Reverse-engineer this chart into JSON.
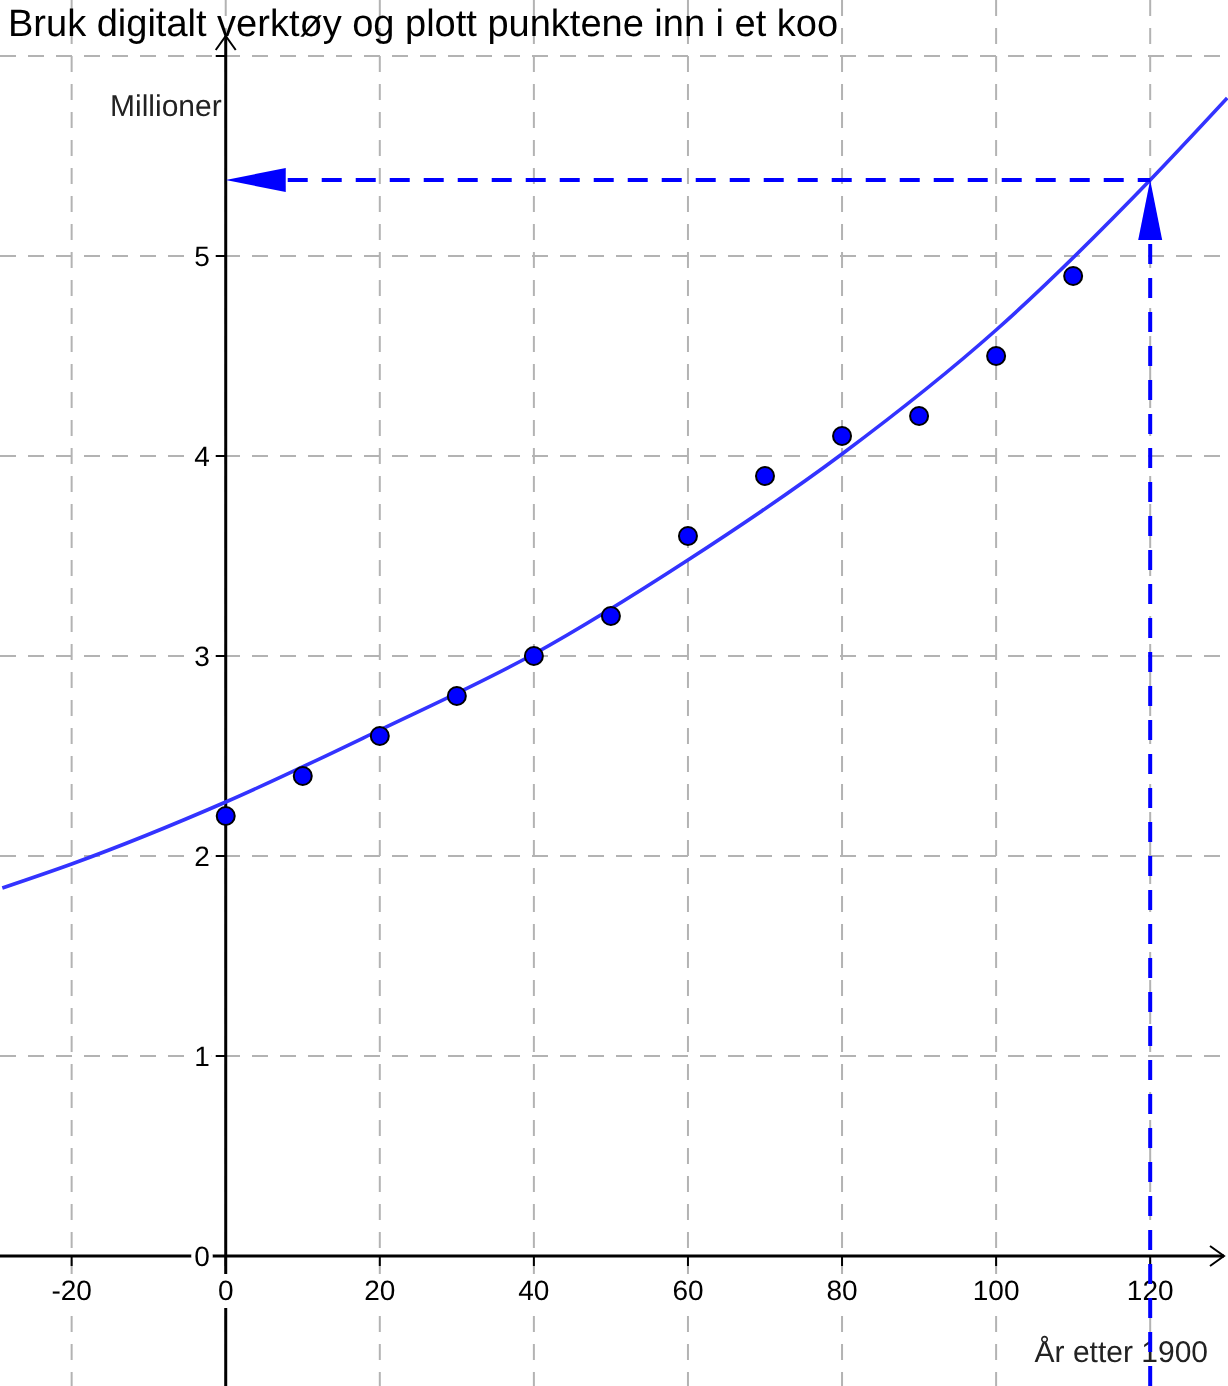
{
  "chart_data": {
    "type": "scatter",
    "title": "Bruk digitalt verktøy og plott punktene inn i et koo",
    "xlabel": "År etter 1900",
    "ylabel": "Millioner",
    "xlim": [
      -29.3,
      130.1
    ],
    "ylim": [
      -0.65,
      6.28
    ],
    "xticks": [
      -20,
      0,
      20,
      40,
      60,
      80,
      100,
      120
    ],
    "yticks": [
      0,
      1,
      2,
      3,
      4,
      5,
      {
        "value": 6,
        "label": null
      }
    ],
    "grid": true,
    "series": [
      {
        "marker": "circle",
        "color": "#0000ff",
        "x": [
          0,
          10,
          20,
          30,
          40,
          50,
          60,
          70,
          80,
          90,
          100,
          110
        ],
        "values": [
          2.2,
          2.4,
          2.6,
          2.8,
          3.0,
          3.2,
          3.6,
          3.9,
          4.1,
          4.2,
          4.5,
          4.9
        ]
      },
      {
        "type": "line",
        "color": "#3333ff",
        "x": [
          -29,
          -20,
          0,
          20,
          40,
          60,
          80,
          100,
          120,
          130
        ],
        "values": [
          1.84,
          1.96,
          2.27,
          2.63,
          3.01,
          3.48,
          4.01,
          4.63,
          5.38,
          5.79
        ]
      }
    ],
    "ref_lines": [
      {
        "axis": "x",
        "value": 120,
        "color": "#0000ff",
        "line_style": "dashed"
      },
      {
        "axis": "y",
        "value": 5.38,
        "color": "#0000ff",
        "line_style": "dashed"
      }
    ]
  }
}
